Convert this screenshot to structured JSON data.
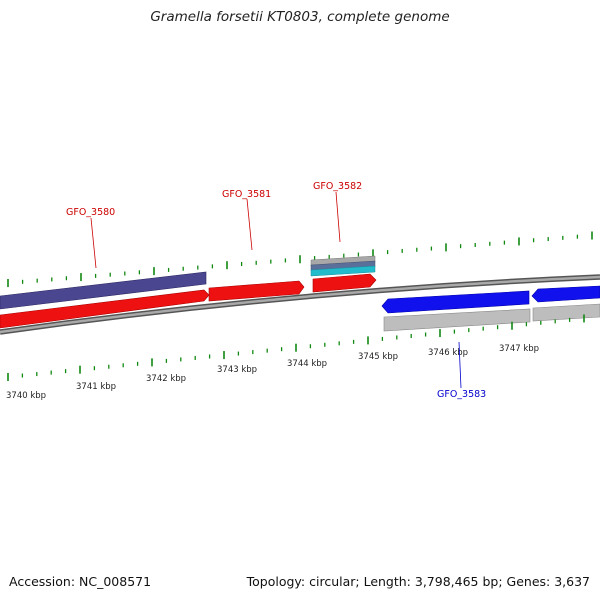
{
  "title": "Gramella forsetii KT0803, complete genome",
  "footer": {
    "accession": "Accession: NC_008571",
    "stats": "Topology: circular; Length: 3,798,465 bp; Genes: 3,637"
  },
  "colors": {
    "forward_gene": "#ee1111",
    "reverse_gene": "#1111ee",
    "backbone": "#888888",
    "tick": "#118811",
    "lavender_feature": "#4b4690",
    "gray_feature": "#b8b8b8",
    "cyan_feature": "#22bbcc"
  },
  "position_ticks": [
    "3740 kbp",
    "3741 kbp",
    "3742 kbp",
    "3743 kbp",
    "3744 kbp",
    "3745 kbp",
    "3746 kbp",
    "3747 kbp"
  ],
  "genes": [
    {
      "id": "GFO_3580",
      "strand": "forward",
      "color": "#ee1111"
    },
    {
      "id": "GFO_3581",
      "strand": "forward",
      "color": "#ee1111"
    },
    {
      "id": "GFO_3582",
      "strand": "forward",
      "color": "#ee1111"
    },
    {
      "id": "GFO_3583",
      "strand": "reverse",
      "color": "#1111ee"
    }
  ]
}
